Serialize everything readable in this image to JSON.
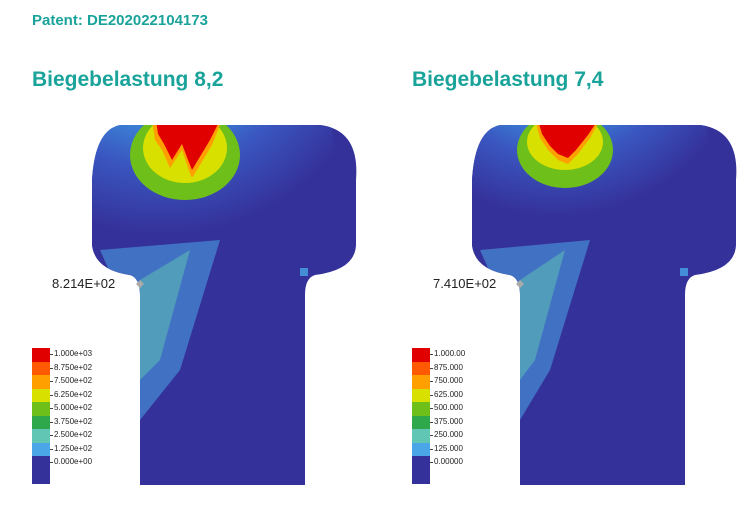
{
  "patent": "Patent: DE202022104173",
  "panels": [
    {
      "title": "Biegebelastung 8,2",
      "max_label": "8.214E+02",
      "legend": [
        "1.000e+03",
        "8.750e+02",
        "7.500e+02",
        "6.250e+02",
        "5.000e+02",
        "3.750e+02",
        "2.500e+02",
        "1.250e+02",
        "0.000e+00"
      ]
    },
    {
      "title": "Biegebelastung 7,4",
      "max_label": "7.410E+02",
      "legend": [
        "1.000.00",
        "875.000",
        "750.000",
        "625.000",
        "500.000",
        "375.000",
        "250.000",
        "125.000",
        "0.00000"
      ]
    }
  ],
  "colors": {
    "accent": "#1aa39a",
    "scale": [
      "#e00000",
      "#ff5a00",
      "#ffa000",
      "#d8e000",
      "#6fbf1a",
      "#2ea84a",
      "#62c6b4",
      "#4aa6e6",
      "#35319a"
    ]
  }
}
